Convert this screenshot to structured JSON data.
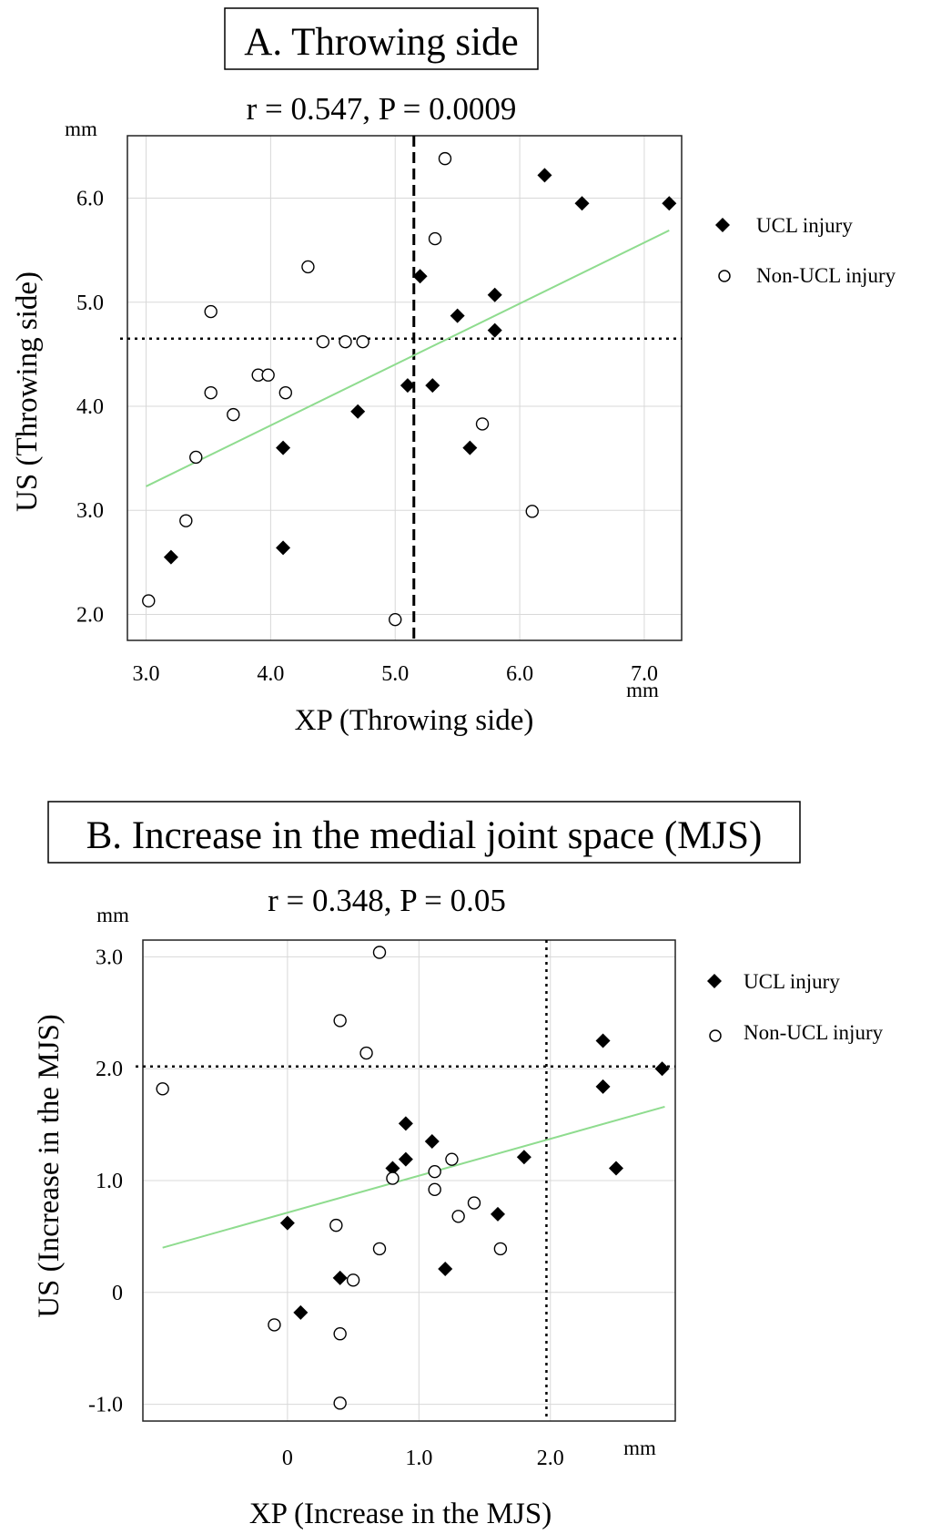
{
  "chart_data": [
    {
      "type": "scatter",
      "title": "A. Throwing side",
      "subtitle": "r = 0.547, P = 0.0009",
      "xlabel": "XP (Throwing side)",
      "ylabel": "US (Throwing side)",
      "x_unit": "mm",
      "y_unit": "mm",
      "xticks": [
        "3.0",
        "4.0",
        "5.0",
        "6.0",
        "7.0"
      ],
      "yticks": [
        "2.0",
        "3.0",
        "4.0",
        "5.0",
        "6.0"
      ],
      "xlim": [
        2.85,
        7.3
      ],
      "ylim": [
        1.75,
        6.6
      ],
      "grid": true,
      "legend_position": "right",
      "cutoff_x": 5.15,
      "cutoff_y": 4.65,
      "trendline": {
        "x": [
          3.0,
          7.2
        ],
        "y": [
          3.23,
          5.69
        ]
      },
      "series": [
        {
          "name": "UCL injury",
          "marker": "diamond-filled",
          "points": [
            [
              3.2,
              2.55
            ],
            [
              4.1,
              2.64
            ],
            [
              4.1,
              3.6
            ],
            [
              4.7,
              3.95
            ],
            [
              5.1,
              4.2
            ],
            [
              5.2,
              5.25
            ],
            [
              5.3,
              4.2
            ],
            [
              5.5,
              4.87
            ],
            [
              5.6,
              3.6
            ],
            [
              5.8,
              4.73
            ],
            [
              5.8,
              5.07
            ],
            [
              6.2,
              6.22
            ],
            [
              6.5,
              5.95
            ],
            [
              7.2,
              5.95
            ]
          ]
        },
        {
          "name": "Non-UCL injury",
          "marker": "circle-open",
          "points": [
            [
              3.02,
              2.13
            ],
            [
              3.32,
              2.9
            ],
            [
              3.4,
              3.51
            ],
            [
              3.52,
              4.13
            ],
            [
              3.52,
              4.91
            ],
            [
              3.7,
              3.92
            ],
            [
              3.9,
              4.3
            ],
            [
              3.98,
              4.3
            ],
            [
              4.12,
              4.13
            ],
            [
              4.3,
              5.34
            ],
            [
              4.42,
              4.62
            ],
            [
              4.6,
              4.62
            ],
            [
              4.74,
              4.62
            ],
            [
              5.0,
              1.95
            ],
            [
              5.32,
              5.61
            ],
            [
              5.4,
              6.38
            ],
            [
              5.7,
              3.83
            ],
            [
              6.1,
              2.99
            ]
          ]
        }
      ]
    },
    {
      "type": "scatter",
      "title": "B. Increase in the medial joint space (MJS)",
      "subtitle": "r = 0.348, P = 0.05",
      "xlabel": "XP (Increase in the MJS)",
      "ylabel": "US (Increase in the MJS)",
      "x_unit": "mm",
      "y_unit": "mm",
      "xticks": [
        "0",
        "1.0",
        "2.0"
      ],
      "yticks": [
        "-1.0",
        "0",
        "1.0",
        "2.0",
        "3.0"
      ],
      "xlim": [
        -1.1,
        2.95
      ],
      "ylim": [
        -1.15,
        3.15
      ],
      "grid": true,
      "legend_position": "right",
      "cutoff_x": 1.97,
      "cutoff_y": 2.02,
      "trendline": {
        "x": [
          -0.95,
          2.87
        ],
        "y": [
          0.4,
          1.66
        ]
      },
      "series": [
        {
          "name": "UCL injury",
          "marker": "diamond-filled",
          "points": [
            [
              0.0,
              0.62
            ],
            [
              0.1,
              -0.18
            ],
            [
              0.4,
              0.13
            ],
            [
              0.8,
              1.11
            ],
            [
              0.9,
              1.19
            ],
            [
              0.9,
              1.51
            ],
            [
              1.1,
              1.35
            ],
            [
              1.2,
              0.21
            ],
            [
              1.6,
              0.7
            ],
            [
              1.8,
              1.21
            ],
            [
              2.4,
              1.84
            ],
            [
              2.4,
              2.25
            ],
            [
              2.5,
              1.11
            ],
            [
              2.85,
              2.0
            ]
          ]
        },
        {
          "name": "Non-UCL injury",
          "marker": "circle-open",
          "points": [
            [
              -0.95,
              1.82
            ],
            [
              -0.1,
              -0.29
            ],
            [
              0.37,
              0.6
            ],
            [
              0.4,
              2.43
            ],
            [
              0.4,
              -0.37
            ],
            [
              0.4,
              -0.99
            ],
            [
              0.5,
              0.11
            ],
            [
              0.6,
              2.14
            ],
            [
              0.7,
              3.04
            ],
            [
              0.7,
              0.39
            ],
            [
              0.8,
              1.02
            ],
            [
              1.12,
              1.08
            ],
            [
              1.12,
              0.92
            ],
            [
              1.25,
              1.19
            ],
            [
              1.3,
              0.68
            ],
            [
              1.42,
              0.8
            ],
            [
              1.62,
              0.39
            ]
          ]
        }
      ]
    }
  ]
}
